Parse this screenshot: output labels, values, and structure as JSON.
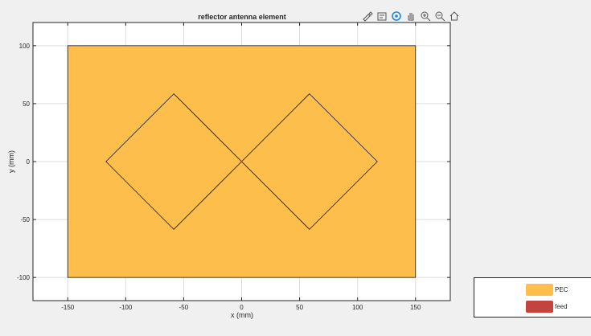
{
  "toolbar": {
    "icons": [
      "export-icon",
      "datatip-icon",
      "rotate-icon",
      "pan-icon",
      "zoom-in-icon",
      "zoom-out-icon",
      "home-icon"
    ]
  },
  "chart_data": {
    "type": "geometry",
    "title": "reflector antenna element",
    "xlabel": "x (mm)",
    "ylabel": "y (mm)",
    "xlim": [
      -180,
      180
    ],
    "ylim": [
      -120,
      120
    ],
    "xticks": [
      -150,
      -100,
      -50,
      0,
      50,
      100,
      150
    ],
    "yticks": [
      -100,
      -50,
      0,
      50,
      100
    ],
    "grid": true,
    "legend_position": "bottom-right-outside",
    "ground_plane": {
      "x": [
        -150,
        150
      ],
      "y": [
        -100,
        100
      ],
      "color": "#fdbe4c"
    },
    "left_diamond": [
      [
        0,
        0
      ],
      [
        -58.5,
        58.5
      ],
      [
        -117,
        0
      ],
      [
        -58.5,
        -58.5
      ]
    ],
    "right_diamond": [
      [
        0,
        0
      ],
      [
        58.5,
        58.5
      ],
      [
        117,
        0
      ],
      [
        58.5,
        -58.5
      ]
    ],
    "feed_point": [
      0,
      0
    ],
    "legend": [
      {
        "label": "PEC",
        "color": "#fdbe4c"
      },
      {
        "label": "feed",
        "color": "#c3443f"
      }
    ]
  }
}
